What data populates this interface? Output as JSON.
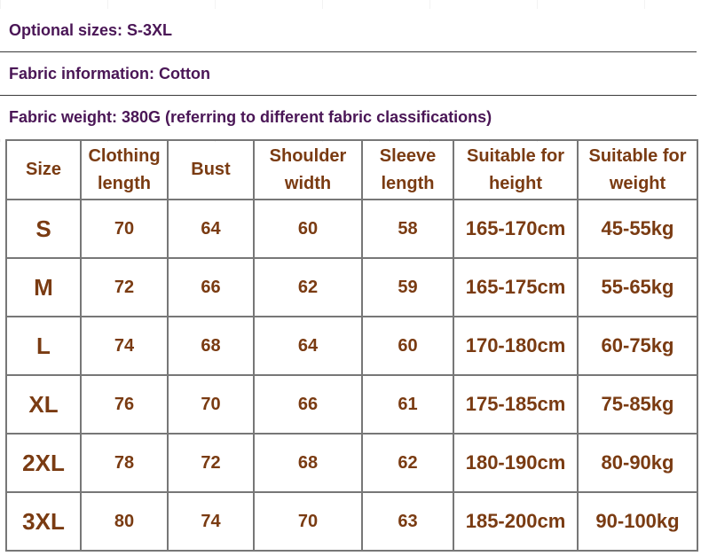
{
  "info": {
    "sizes": "Optional sizes: S-3XL",
    "fabric": "Fabric information: Cotton",
    "weight": "Fabric weight: 380G (referring to different fabric classifications)"
  },
  "table": {
    "headers": {
      "size": "Size",
      "clothing_length_1": "Clothing",
      "clothing_length_2": "length",
      "bust": "Bust",
      "shoulder_1": "Shoulder",
      "shoulder_2": "width",
      "sleeve_1": "Sleeve",
      "sleeve_2": "length",
      "height_1": "Suitable for",
      "height_2": "height",
      "weight_1": "Suitable for",
      "weight_2": "weight"
    },
    "rows": [
      {
        "size": "S",
        "length": "70",
        "bust": "64",
        "shoulder": "60",
        "sleeve": "58",
        "height": "165-170cm",
        "weight": "45-55kg"
      },
      {
        "size": "M",
        "length": "72",
        "bust": "66",
        "shoulder": "62",
        "sleeve": "59",
        "height": "165-175cm",
        "weight": "55-65kg"
      },
      {
        "size": "L",
        "length": "74",
        "bust": "68",
        "shoulder": "64",
        "sleeve": "60",
        "height": "170-180cm",
        "weight": "60-75kg"
      },
      {
        "size": "XL",
        "length": "76",
        "bust": "70",
        "shoulder": "66",
        "sleeve": "61",
        "height": "175-185cm",
        "weight": "75-85kg"
      },
      {
        "size": "2XL",
        "length": "78",
        "bust": "72",
        "shoulder": "68",
        "sleeve": "62",
        "height": "180-190cm",
        "weight": "80-90kg"
      },
      {
        "size": "3XL",
        "length": "80",
        "bust": "74",
        "shoulder": "70",
        "sleeve": "63",
        "height": "185-200cm",
        "weight": "90-100kg"
      }
    ]
  },
  "colors": {
    "info_text": "#4a1656",
    "table_text": "#7a3b12",
    "border": "#777777"
  }
}
